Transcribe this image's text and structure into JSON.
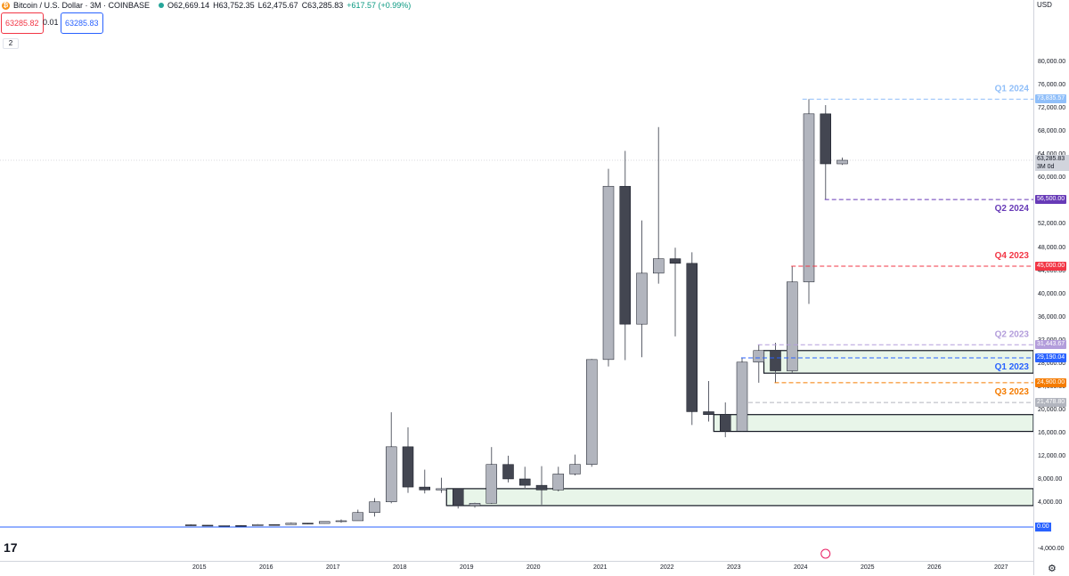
{
  "header": {
    "symbol": "Bitcoin / U.S. Dollar · 3M · COINBASE",
    "open": "O62,669.14",
    "high": "H63,752.35",
    "low": "L62,475.67",
    "close": "C63,285.83",
    "change": "+617.57 (+0.99%)",
    "sell_price": "63285.82",
    "spread": "0.01",
    "buy_price": "63285.83",
    "indicator_count": "2"
  },
  "price_axis": {
    "currency": "USD",
    "ticks": [
      "80,000.00",
      "76,000.00",
      "72,000.00",
      "68,000.00",
      "64,000.00",
      "60,000.00",
      "56,000.00",
      "52,000.00",
      "48,000.00",
      "44,000.00",
      "40,000.00",
      "36,000.00",
      "32,000.00",
      "28,000.00",
      "24,000.00",
      "20,000.00",
      "16,000.00",
      "12,000.00",
      "8,000.00",
      "4,000.00",
      "-4,000.00"
    ]
  },
  "time_axis": {
    "years": [
      "2015",
      "2016",
      "2017",
      "2018",
      "2019",
      "2020",
      "2021",
      "2022",
      "2023",
      "2024",
      "2025",
      "2026",
      "2027"
    ]
  },
  "colors": {
    "up_body": "#b2b5be",
    "down_body": "#434651",
    "wick": "#5d606b",
    "zone_fill": "#e8f5e9",
    "zone_border": "#131722",
    "q1_2024": "#90bff9",
    "q2_2024": "#673ab7",
    "q4_2023": "#f23645",
    "q2_2023": "#b39ddb",
    "q1_2023": "#2962ff",
    "q3_2023": "#f57c00",
    "low_line": "#b2b5be",
    "zero": "#2962ff"
  },
  "chart_data": {
    "type": "candlestick",
    "interval": "3M",
    "ylim": [
      -6000,
      82000
    ],
    "candles": [
      {
        "d": "2014-10",
        "o": 380,
        "h": 460,
        "l": 300,
        "c": 320
      },
      {
        "d": "2015-01",
        "o": 320,
        "h": 320,
        "l": 170,
        "c": 245
      },
      {
        "d": "2015-04",
        "o": 245,
        "h": 260,
        "l": 200,
        "c": 262
      },
      {
        "d": "2015-07",
        "o": 262,
        "h": 320,
        "l": 200,
        "c": 237
      },
      {
        "d": "2015-10",
        "o": 237,
        "h": 500,
        "l": 235,
        "c": 430
      },
      {
        "d": "2016-01",
        "o": 430,
        "h": 450,
        "l": 360,
        "c": 415
      },
      {
        "d": "2016-04",
        "o": 415,
        "h": 780,
        "l": 410,
        "c": 675
      },
      {
        "d": "2016-07",
        "o": 675,
        "h": 680,
        "l": 480,
        "c": 610
      },
      {
        "d": "2016-10",
        "o": 610,
        "h": 980,
        "l": 600,
        "c": 960
      },
      {
        "d": "2017-01",
        "o": 960,
        "h": 1300,
        "l": 750,
        "c": 1080
      },
      {
        "d": "2017-04",
        "o": 1080,
        "h": 3000,
        "l": 1080,
        "c": 2500
      },
      {
        "d": "2017-07",
        "o": 2500,
        "h": 5000,
        "l": 1800,
        "c": 4350
      },
      {
        "d": "2017-10",
        "o": 4350,
        "h": 19800,
        "l": 4100,
        "c": 13850
      },
      {
        "d": "2018-01",
        "o": 13850,
        "h": 17200,
        "l": 5900,
        "c": 6900
      },
      {
        "d": "2018-04",
        "o": 6900,
        "h": 9900,
        "l": 5800,
        "c": 6400
      },
      {
        "d": "2018-07",
        "o": 6400,
        "h": 8500,
        "l": 5900,
        "c": 6620
      },
      {
        "d": "2018-10",
        "o": 6620,
        "h": 6700,
        "l": 3200,
        "c": 3700
      },
      {
        "d": "2019-01",
        "o": 3700,
        "h": 4200,
        "l": 3350,
        "c": 4100
      },
      {
        "d": "2019-04",
        "o": 4100,
        "h": 13800,
        "l": 4000,
        "c": 10800
      },
      {
        "d": "2019-07",
        "o": 10800,
        "h": 12300,
        "l": 7700,
        "c": 8300
      },
      {
        "d": "2019-10",
        "o": 8300,
        "h": 10400,
        "l": 6500,
        "c": 7200
      },
      {
        "d": "2020-01",
        "o": 7200,
        "h": 10500,
        "l": 3850,
        "c": 6400
      },
      {
        "d": "2020-04",
        "o": 6400,
        "h": 10400,
        "l": 6150,
        "c": 9150
      },
      {
        "d": "2020-07",
        "o": 9150,
        "h": 12500,
        "l": 8900,
        "c": 10800
      },
      {
        "d": "2020-10",
        "o": 10800,
        "h": 29000,
        "l": 10400,
        "c": 28900
      },
      {
        "d": "2021-01",
        "o": 28900,
        "h": 61800,
        "l": 27700,
        "c": 58800
      },
      {
        "d": "2021-04",
        "o": 58800,
        "h": 64900,
        "l": 28800,
        "c": 35000
      },
      {
        "d": "2021-07",
        "o": 35000,
        "h": 52900,
        "l": 29300,
        "c": 43800
      },
      {
        "d": "2021-10",
        "o": 43800,
        "h": 69000,
        "l": 42000,
        "c": 46300
      },
      {
        "d": "2022-01",
        "o": 46300,
        "h": 48200,
        "l": 32900,
        "c": 45500
      },
      {
        "d": "2022-04",
        "o": 45500,
        "h": 47400,
        "l": 17600,
        "c": 19900
      },
      {
        "d": "2022-07",
        "o": 19900,
        "h": 25200,
        "l": 18200,
        "c": 19400
      },
      {
        "d": "2022-10",
        "o": 19400,
        "h": 21500,
        "l": 15500,
        "c": 16550
      },
      {
        "d": "2023-01",
        "o": 16550,
        "h": 29200,
        "l": 16500,
        "c": 28450
      },
      {
        "d": "2023-04",
        "o": 28450,
        "h": 31443.67,
        "l": 24900,
        "c": 30450
      },
      {
        "d": "2023-07",
        "o": 30450,
        "h": 31800,
        "l": 24900,
        "c": 26950
      },
      {
        "d": "2023-10",
        "o": 26950,
        "h": 45000,
        "l": 26550,
        "c": 42300
      },
      {
        "d": "2024-01",
        "o": 42300,
        "h": 73835.57,
        "l": 38500,
        "c": 71300
      },
      {
        "d": "2024-04",
        "o": 71300,
        "h": 72800,
        "l": 56500,
        "c": 62669.14
      },
      {
        "d": "2024-07",
        "o": 62669.14,
        "h": 63752.35,
        "l": 62475.67,
        "c": 63285.83
      }
    ],
    "levels": [
      {
        "name": "Q1 2024",
        "value": 73835.57,
        "label": "73,835.57",
        "from": "2023-12",
        "key": "q1_2024"
      },
      {
        "name": "Q2 2024",
        "value": 56500,
        "label": "56,500.00",
        "from": "2024-04",
        "key": "q2_2024"
      },
      {
        "name": "Q4 2023",
        "value": 45000,
        "label": "45,000.00",
        "from": "2023-10",
        "key": "q4_2023"
      },
      {
        "name": "Q2 2023",
        "value": 31443.67,
        "label": "31,443.67",
        "from": "2023-04",
        "key": "q2_2023"
      },
      {
        "name": "Q1 2023",
        "value": 29190.04,
        "label": "29,190.04",
        "from": "2023-01",
        "key": "q1_2023"
      },
      {
        "name": "Q3 2023",
        "value": 24900,
        "label": "24,900.00",
        "from": "2023-07",
        "key": "q3_2023"
      },
      {
        "name": "",
        "value": 21478.8,
        "label": "21,478.80",
        "from": "2023-01",
        "key": "low_line"
      }
    ],
    "zones": [
      {
        "top": 30450,
        "bottom": 26550,
        "from": "2023-07"
      },
      {
        "top": 19400,
        "bottom": 16500,
        "from": "2022-10"
      },
      {
        "top": 6620,
        "bottom": 3700,
        "from": "2018-10"
      }
    ],
    "current_price": {
      "value": 63285.83,
      "label": "63,285.83",
      "countdown": "3M 0d"
    },
    "zero_line": {
      "value": 0,
      "label": "0.00"
    }
  }
}
